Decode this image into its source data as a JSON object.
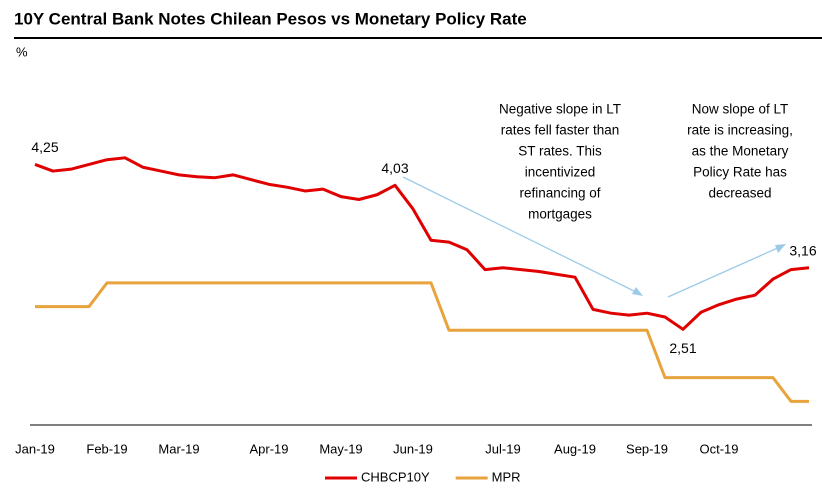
{
  "chart_data": {
    "type": "line",
    "title": "10Y Central Bank Notes Chilean Pesos vs Monetary Policy Rate",
    "y_label": "%",
    "categories": [
      "Jan-19",
      null,
      null,
      null,
      "Feb-19",
      null,
      null,
      null,
      "Mar-19",
      null,
      null,
      null,
      null,
      "Apr-19",
      null,
      null,
      null,
      "May-19",
      null,
      null,
      null,
      "Jun-19",
      null,
      null,
      null,
      null,
      "Jul-19",
      null,
      null,
      null,
      "Aug-19",
      null,
      null,
      null,
      "Sep-19",
      null,
      null,
      null,
      "Oct-19",
      null,
      null,
      null,
      null,
      null
    ],
    "ylim": [
      1.5,
      5.5
    ],
    "series": [
      {
        "name": "CHBCP10Y",
        "color": "#e00000",
        "values": [
          4.25,
          4.18,
          4.2,
          4.25,
          4.3,
          4.32,
          4.22,
          4.18,
          4.14,
          4.12,
          4.11,
          4.14,
          4.09,
          4.04,
          4.01,
          3.97,
          3.99,
          3.91,
          3.88,
          3.93,
          4.03,
          3.78,
          3.45,
          3.43,
          3.35,
          3.14,
          3.16,
          3.14,
          3.12,
          3.09,
          3.06,
          2.72,
          2.68,
          2.66,
          2.68,
          2.64,
          2.51,
          2.69,
          2.77,
          2.83,
          2.87,
          3.04,
          3.14,
          3.16
        ],
        "value_labels": [
          "4,25",
          null,
          null,
          null,
          null,
          null,
          null,
          null,
          null,
          null,
          null,
          null,
          null,
          null,
          null,
          null,
          null,
          null,
          null,
          null,
          "4,03",
          null,
          null,
          null,
          null,
          null,
          null,
          null,
          null,
          null,
          null,
          null,
          null,
          null,
          null,
          null,
          "2,51",
          null,
          null,
          null,
          null,
          null,
          null,
          "3,16"
        ]
      },
      {
        "name": "MPR",
        "color": "#e8a33c",
        "values": [
          2.75,
          2.75,
          2.75,
          2.75,
          3.0,
          3.0,
          3.0,
          3.0,
          3.0,
          3.0,
          3.0,
          3.0,
          3.0,
          3.0,
          3.0,
          3.0,
          3.0,
          3.0,
          3.0,
          3.0,
          3.0,
          3.0,
          3.0,
          2.5,
          2.5,
          2.5,
          2.5,
          2.5,
          2.5,
          2.5,
          2.5,
          2.5,
          2.5,
          2.5,
          2.5,
          2.0,
          2.0,
          2.0,
          2.0,
          2.0,
          2.0,
          2.0,
          1.75,
          1.75
        ]
      }
    ],
    "annotations": [
      {
        "lines": [
          "Negative slope in LT",
          "rates fell faster than",
          "ST rates. This",
          "incentivized",
          "refinancing of",
          "mortgages"
        ]
      },
      {
        "lines": [
          "Now slope of LT",
          "rate is increasing,",
          "as the Monetary",
          "Policy Rate has",
          "decreased"
        ]
      }
    ],
    "legend": "bottom"
  }
}
